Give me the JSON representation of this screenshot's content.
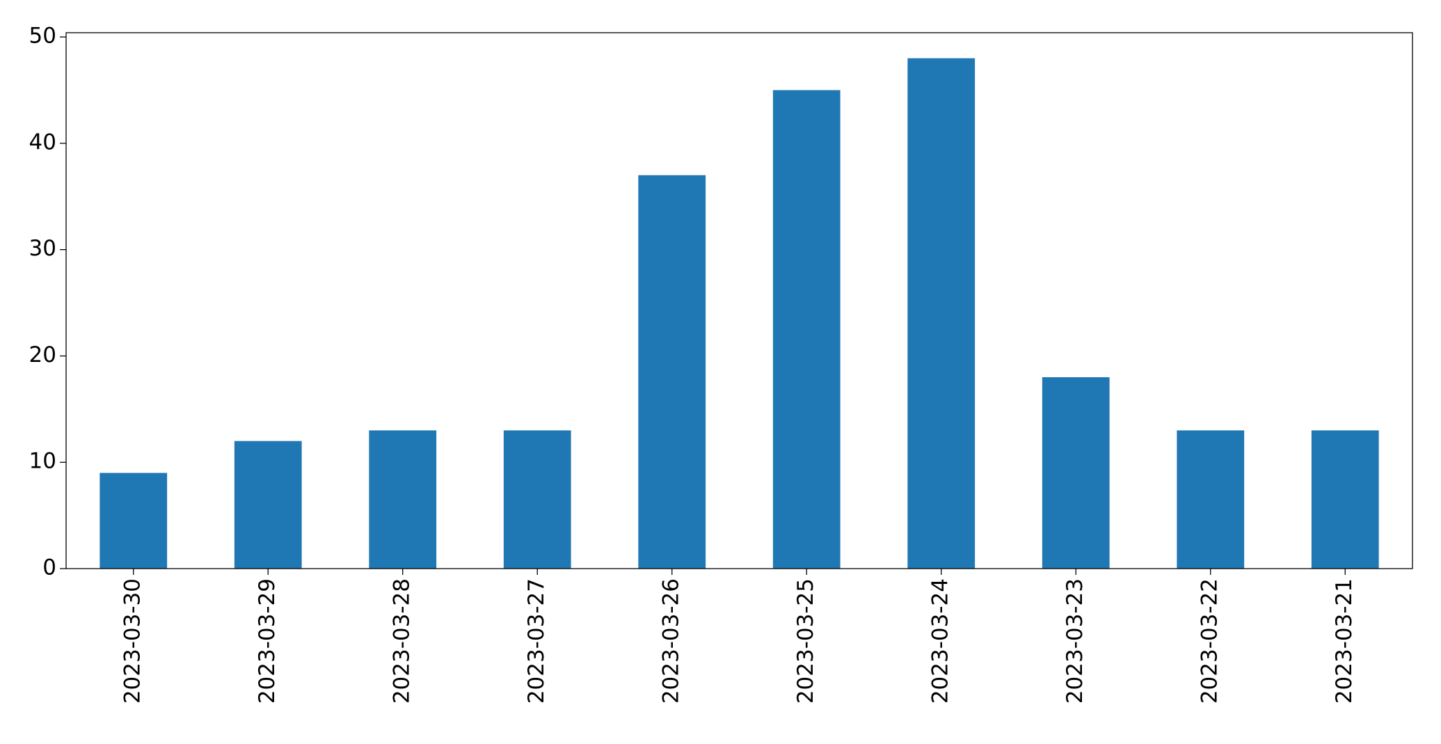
{
  "chart_data": {
    "type": "bar",
    "categories": [
      "2023-03-30",
      "2023-03-29",
      "2023-03-28",
      "2023-03-27",
      "2023-03-26",
      "2023-03-25",
      "2023-03-24",
      "2023-03-23",
      "2023-03-22",
      "2023-03-21"
    ],
    "values": [
      9,
      12,
      13,
      13,
      37,
      45,
      48,
      18,
      13,
      13
    ],
    "color": "#1f77b4",
    "ylim": [
      0,
      50.4
    ],
    "yticks": [
      0,
      10,
      20,
      30,
      40,
      50
    ],
    "grid": false
  }
}
